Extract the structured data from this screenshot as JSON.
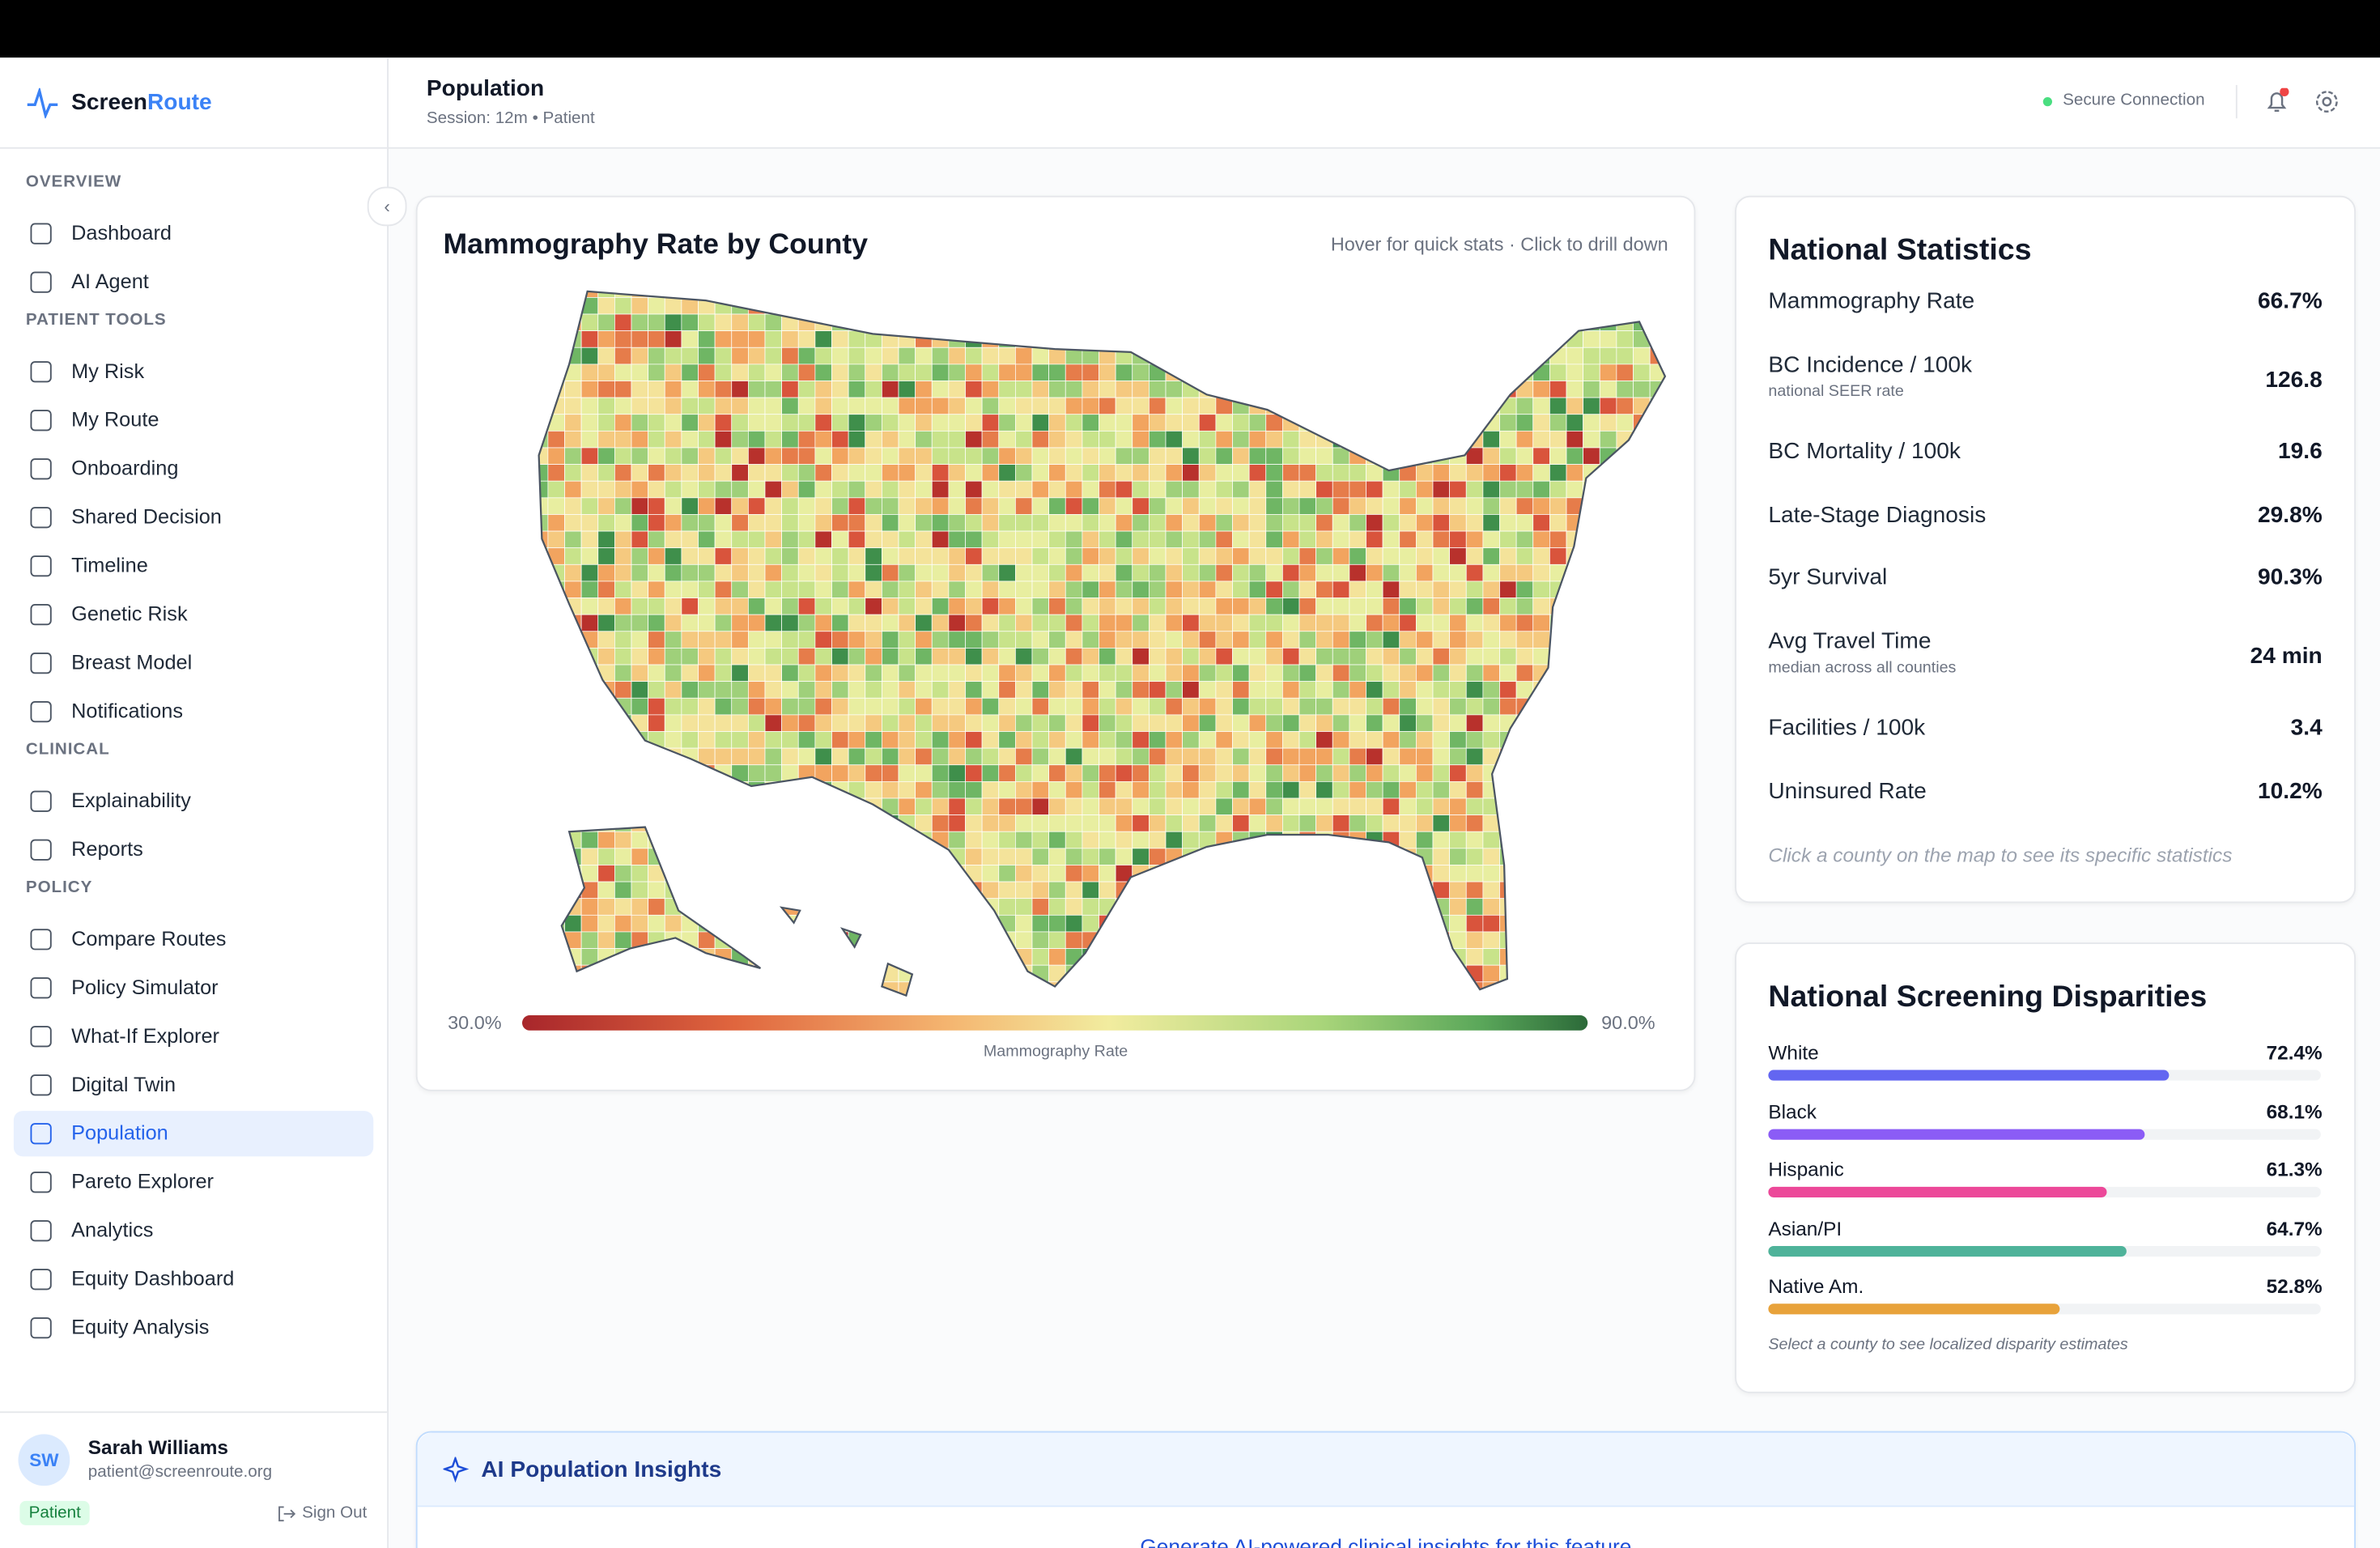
{
  "header": {
    "brand_prefix": "Screen",
    "brand_suffix": "Route",
    "page_title": "Population",
    "session": "Session: 12m • Patient",
    "status": "Secure Connection"
  },
  "sidebar": {
    "sections": [
      {
        "title": "OVERVIEW",
        "items": [
          {
            "label": "Dashboard"
          },
          {
            "label": "AI Agent"
          }
        ]
      },
      {
        "title": "PATIENT TOOLS",
        "items": [
          {
            "label": "My Risk"
          },
          {
            "label": "My Route"
          },
          {
            "label": "Onboarding"
          },
          {
            "label": "Shared Decision"
          },
          {
            "label": "Timeline"
          },
          {
            "label": "Genetic Risk"
          },
          {
            "label": "Breast Model"
          },
          {
            "label": "Notifications"
          }
        ]
      },
      {
        "title": "CLINICAL",
        "items": [
          {
            "label": "Explainability"
          },
          {
            "label": "Reports"
          }
        ]
      },
      {
        "title": "POLICY",
        "items": [
          {
            "label": "Compare Routes"
          },
          {
            "label": "Policy Simulator"
          },
          {
            "label": "What-If Explorer"
          },
          {
            "label": "Digital Twin"
          },
          {
            "label": "Population",
            "active": true
          },
          {
            "label": "Pareto Explorer"
          },
          {
            "label": "Analytics"
          },
          {
            "label": "Equity Dashboard"
          },
          {
            "label": "Equity Analysis"
          }
        ]
      }
    ],
    "user": {
      "initials": "SW",
      "name": "Sarah Williams",
      "email": "patient@screenroute.org",
      "role": "Patient",
      "sign_out": "Sign Out"
    }
  },
  "map_card": {
    "title": "Mammography Rate by County",
    "hint": "Hover for quick stats · Click to drill down",
    "legend": {
      "min": "30.0%",
      "max": "90.0%",
      "label": "Mammography Rate"
    }
  },
  "stats": {
    "title": "National Statistics",
    "rows": [
      {
        "label": "Mammography Rate",
        "value": "66.7%"
      },
      {
        "label": "BC Incidence / 100k",
        "sub": "national SEER rate",
        "value": "126.8"
      },
      {
        "label": "BC Mortality / 100k",
        "value": "19.6"
      },
      {
        "label": "Late-Stage Diagnosis",
        "value": "29.8%"
      },
      {
        "label": "5yr Survival",
        "value": "90.3%"
      },
      {
        "label": "Avg Travel Time",
        "sub": "median across all counties",
        "value": "24 min"
      },
      {
        "label": "Facilities / 100k",
        "value": "3.4"
      },
      {
        "label": "Uninsured Rate",
        "value": "10.2%"
      }
    ],
    "note": "Click a county on the map to see its specific statistics"
  },
  "disparities": {
    "title": "National Screening Disparities",
    "rows": [
      {
        "label": "White",
        "value": 72.4,
        "value_label": "72.4%",
        "color": "#6366f1"
      },
      {
        "label": "Black",
        "value": 68.1,
        "value_label": "68.1%",
        "color": "#8b5cf6"
      },
      {
        "label": "Hispanic",
        "value": 61.3,
        "value_label": "61.3%",
        "color": "#ec4899"
      },
      {
        "label": "Asian/PI",
        "value": 64.7,
        "value_label": "64.7%",
        "color": "#4fb39a"
      },
      {
        "label": "Native Am.",
        "value": 52.8,
        "value_label": "52.8%",
        "color": "#e8a23a"
      }
    ],
    "note": "Select a county to see localized disparity estimates"
  },
  "insights": {
    "title": "AI Population Insights",
    "prompt": "Generate AI-powered clinical insights for this feature"
  }
}
